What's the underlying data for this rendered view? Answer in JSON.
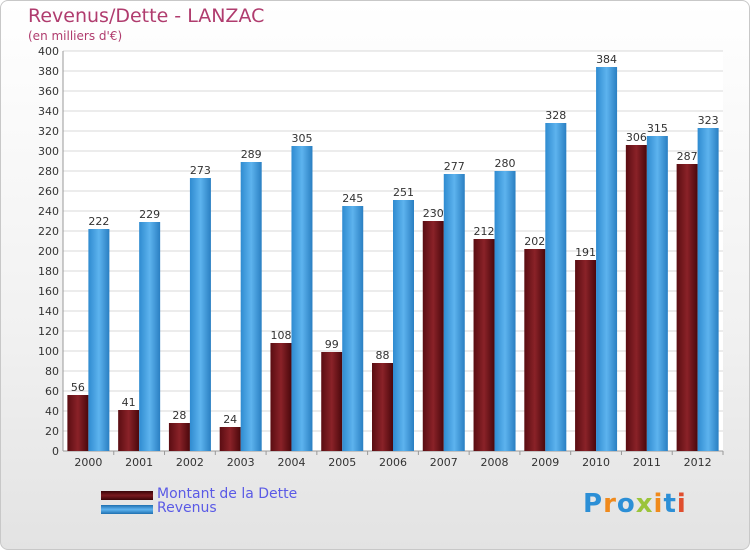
{
  "header": {
    "title": "Revenus/Dette - LANZAC",
    "subtitle": "(en milliers d'€)"
  },
  "colors": {
    "dette": "#7a1a1f",
    "revenus": "#3d9ee0",
    "grid": "#d8d8d8",
    "axis_text": "#333333"
  },
  "logo": {
    "letters": [
      "P",
      "r",
      "o",
      "x",
      "i",
      "t",
      "i"
    ],
    "letter_colors": [
      "#2c8fd6",
      "#f08a1c",
      "#2c8fd6",
      "#9bc43a",
      "#f08a1c",
      "#2c8fd6",
      "#e04e2e"
    ]
  },
  "chart_data": {
    "type": "bar",
    "categories": [
      "2000",
      "2001",
      "2002",
      "2003",
      "2004",
      "2005",
      "2006",
      "2007",
      "2008",
      "2009",
      "2010",
      "2011",
      "2012"
    ],
    "series": [
      {
        "name": "Montant de la Dette",
        "values": [
          56,
          41,
          28,
          24,
          108,
          99,
          88,
          230,
          212,
          202,
          191,
          306,
          287
        ]
      },
      {
        "name": "Revenus",
        "values": [
          222,
          229,
          273,
          289,
          305,
          245,
          251,
          277,
          280,
          328,
          384,
          315,
          323
        ]
      }
    ],
    "yticks": [
      0,
      20,
      40,
      60,
      80,
      100,
      120,
      140,
      160,
      180,
      200,
      220,
      240,
      260,
      280,
      300,
      320,
      340,
      360,
      380,
      400
    ],
    "ylim": [
      0,
      400
    ],
    "grid": true,
    "legend_position": "bottom-left"
  }
}
